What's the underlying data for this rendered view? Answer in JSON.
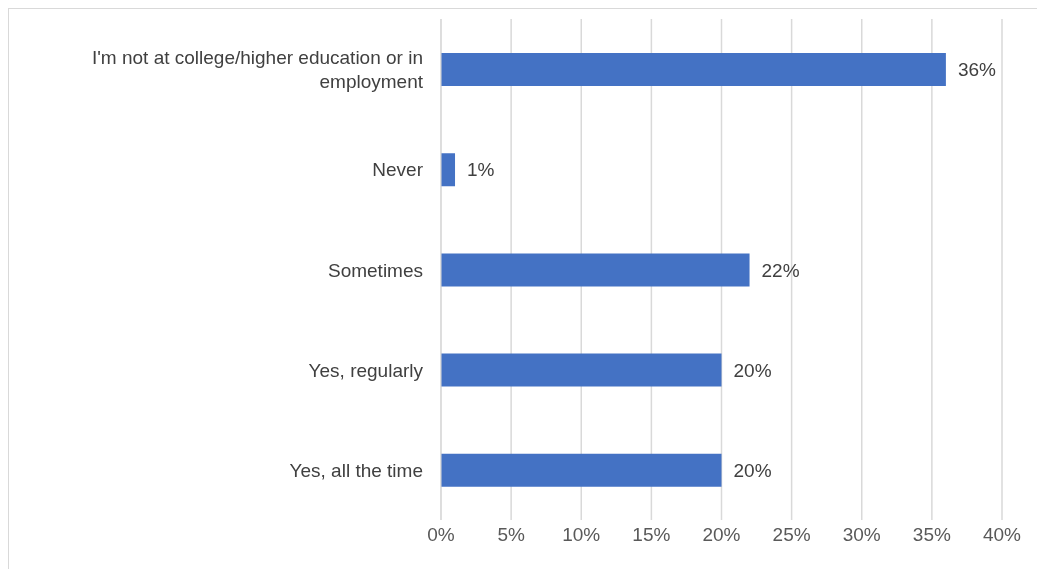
{
  "chart_data": {
    "type": "bar",
    "orientation": "horizontal",
    "categories": [
      "I'm not at college/higher education or in employment",
      "Never",
      "Sometimes",
      "Yes, regularly",
      "Yes, all the time"
    ],
    "values": [
      36,
      1,
      22,
      20,
      20
    ],
    "color": "#4472c4",
    "value_labels": [
      "36%",
      "1%",
      "22%",
      "20%",
      "20%"
    ],
    "xlim": [
      0,
      40
    ],
    "xticks": [
      {
        "value": 0,
        "label": "0%"
      },
      {
        "value": 5,
        "label": "5%"
      },
      {
        "value": 10,
        "label": "10%"
      },
      {
        "value": 15,
        "label": "15%"
      },
      {
        "value": 20,
        "label": "20%"
      },
      {
        "value": 25,
        "label": "25%"
      },
      {
        "value": 30,
        "label": "30%"
      },
      {
        "value": 35,
        "label": "35%"
      },
      {
        "value": 40,
        "label": "40%"
      }
    ],
    "grid": "x"
  }
}
